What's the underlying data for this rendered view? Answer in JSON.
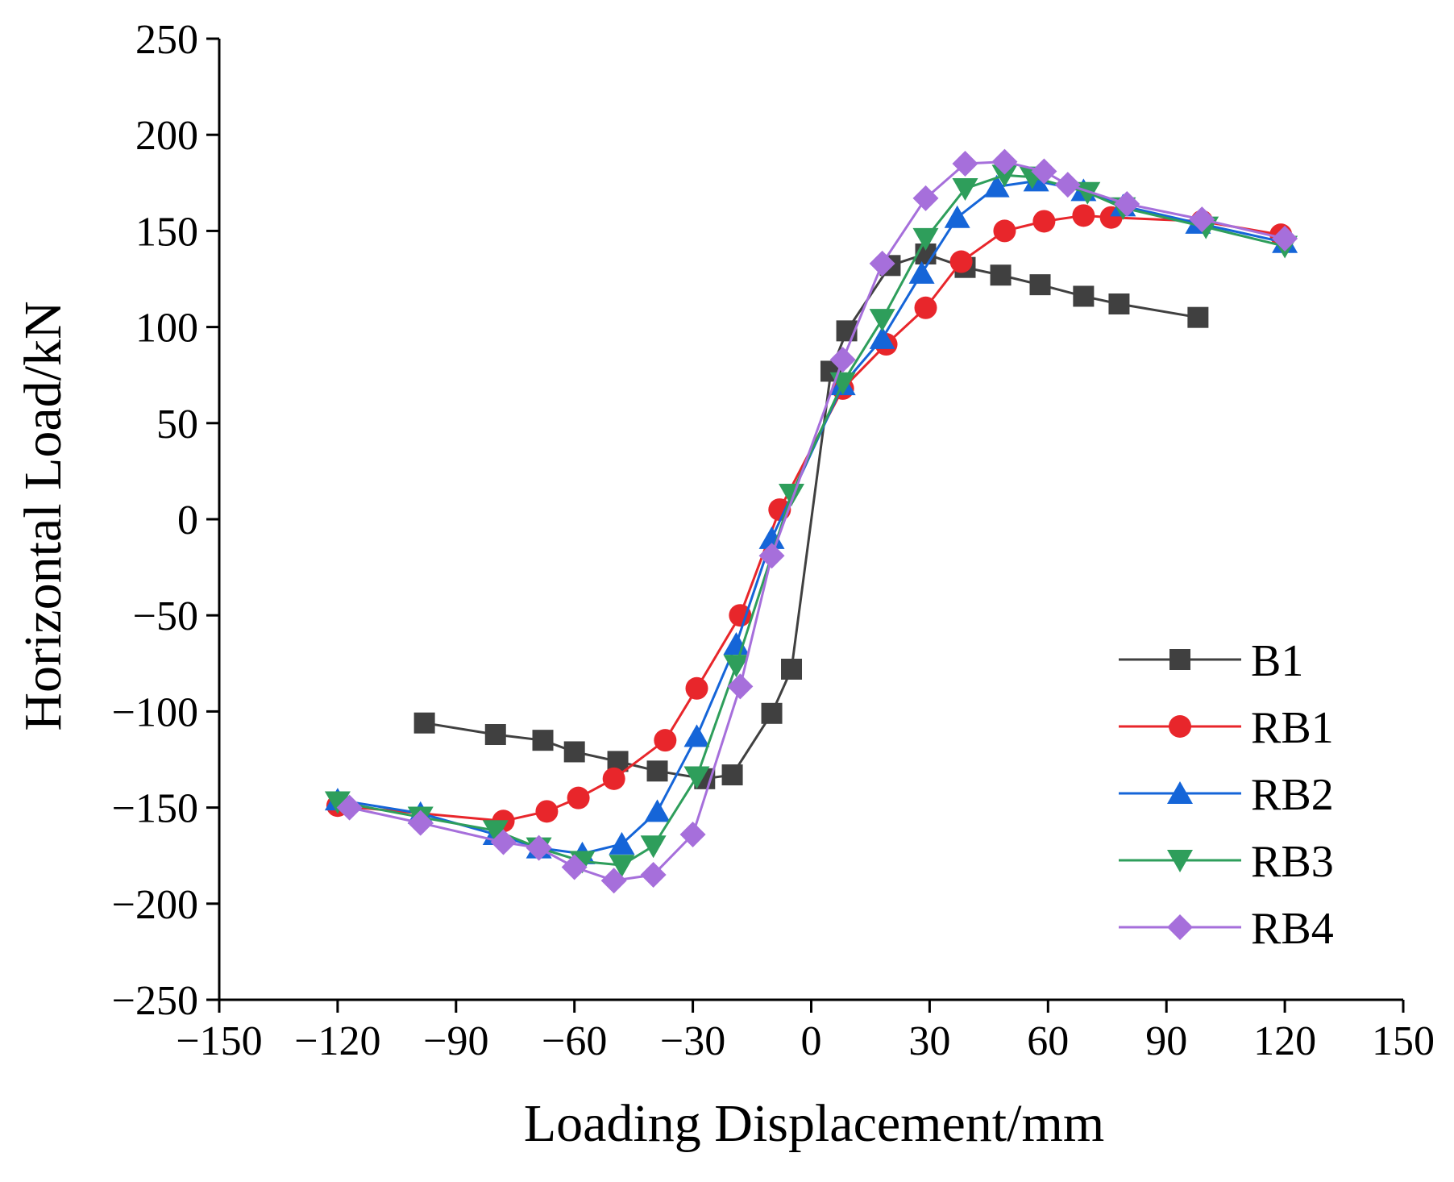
{
  "chart_data": {
    "type": "line",
    "title": "",
    "xlabel": "Loading Displacement/mm",
    "ylabel": "Horizontal Load/kN",
    "xlim": [
      -150,
      150
    ],
    "ylim": [
      -250,
      250
    ],
    "xticks": [
      -150,
      -120,
      -90,
      -60,
      -30,
      0,
      30,
      60,
      90,
      120,
      150
    ],
    "yticks": [
      -250,
      -200,
      -150,
      -100,
      -50,
      0,
      50,
      100,
      150,
      200,
      250
    ],
    "xtick_labels": [
      "−150",
      "−120",
      "−90",
      "−60",
      "−30",
      "0",
      "30",
      "60",
      "90",
      "120",
      "150"
    ],
    "ytick_labels": [
      "−250",
      "−200",
      "−150",
      "−100",
      "−50",
      "0",
      "50",
      "100",
      "150",
      "200",
      "250"
    ],
    "grid": false,
    "legend_position": "bottom-right",
    "series": [
      {
        "name": "B1",
        "color": "#404040",
        "marker": "square",
        "points": [
          [
            -98,
            -106
          ],
          [
            -80,
            -112
          ],
          [
            -68,
            -115
          ],
          [
            -60,
            -121
          ],
          [
            -49,
            -126
          ],
          [
            -39,
            -131
          ],
          [
            -27,
            -135
          ],
          [
            -20,
            -133
          ],
          [
            -10,
            -101
          ],
          [
            -5,
            -78
          ],
          [
            5,
            77
          ],
          [
            9,
            98
          ],
          [
            20,
            132
          ],
          [
            29,
            138
          ],
          [
            39,
            131
          ],
          [
            48,
            127
          ],
          [
            58,
            122
          ],
          [
            69,
            116
          ],
          [
            78,
            112
          ],
          [
            98,
            105
          ]
        ]
      },
      {
        "name": "RB1",
        "color": "#e8262b",
        "marker": "circle",
        "points": [
          [
            -120,
            -149
          ],
          [
            -78,
            -157
          ],
          [
            -67,
            -152
          ],
          [
            -59,
            -145
          ],
          [
            -50,
            -135
          ],
          [
            -37,
            -115
          ],
          [
            -29,
            -88
          ],
          [
            -18,
            -50
          ],
          [
            -8,
            5
          ],
          [
            8,
            68
          ],
          [
            19,
            91
          ],
          [
            29,
            110
          ],
          [
            38,
            134
          ],
          [
            49,
            150
          ],
          [
            59,
            155
          ],
          [
            69,
            158
          ],
          [
            76,
            157
          ],
          [
            99,
            155
          ],
          [
            119,
            148
          ]
        ]
      },
      {
        "name": "RB2",
        "color": "#1565d8",
        "marker": "triangle-up",
        "points": [
          [
            -120,
            -146
          ],
          [
            -99,
            -153
          ],
          [
            -80,
            -164
          ],
          [
            -69,
            -171
          ],
          [
            -58,
            -174
          ],
          [
            -48,
            -169
          ],
          [
            -39,
            -152
          ],
          [
            -29,
            -113
          ],
          [
            -19,
            -65
          ],
          [
            -10,
            -10
          ],
          [
            8,
            70
          ],
          [
            18,
            94
          ],
          [
            28,
            128
          ],
          [
            37,
            157
          ],
          [
            47,
            173
          ],
          [
            57,
            176
          ],
          [
            69,
            171
          ],
          [
            79,
            163
          ],
          [
            98,
            154
          ],
          [
            120,
            144
          ]
        ]
      },
      {
        "name": "RB3",
        "color": "#2e9e5b",
        "marker": "triangle-down",
        "points": [
          [
            -120,
            -147
          ],
          [
            -99,
            -155
          ],
          [
            -80,
            -162
          ],
          [
            -69,
            -171
          ],
          [
            -58,
            -178
          ],
          [
            -48,
            -180
          ],
          [
            -40,
            -170
          ],
          [
            -29,
            -134
          ],
          [
            -19,
            -76
          ],
          [
            -5,
            13
          ],
          [
            8,
            71
          ],
          [
            18,
            104
          ],
          [
            29,
            146
          ],
          [
            39,
            172
          ],
          [
            49,
            179
          ],
          [
            56,
            178
          ],
          [
            70,
            170
          ],
          [
            79,
            162
          ],
          [
            100,
            152
          ],
          [
            120,
            142
          ]
        ]
      },
      {
        "name": "RB4",
        "color": "#a66fdb",
        "marker": "diamond",
        "points": [
          [
            -117,
            -150
          ],
          [
            -99,
            -158
          ],
          [
            -78,
            -168
          ],
          [
            -69,
            -171
          ],
          [
            -60,
            -181
          ],
          [
            -50,
            -188
          ],
          [
            -40,
            -185
          ],
          [
            -30,
            -164
          ],
          [
            -18,
            -87
          ],
          [
            -10,
            -19
          ],
          [
            8,
            83
          ],
          [
            18,
            133
          ],
          [
            29,
            167
          ],
          [
            39,
            185
          ],
          [
            49,
            186
          ],
          [
            59,
            181
          ],
          [
            65,
            174
          ],
          [
            80,
            164
          ],
          [
            99,
            156
          ],
          [
            120,
            146
          ]
        ]
      }
    ]
  }
}
